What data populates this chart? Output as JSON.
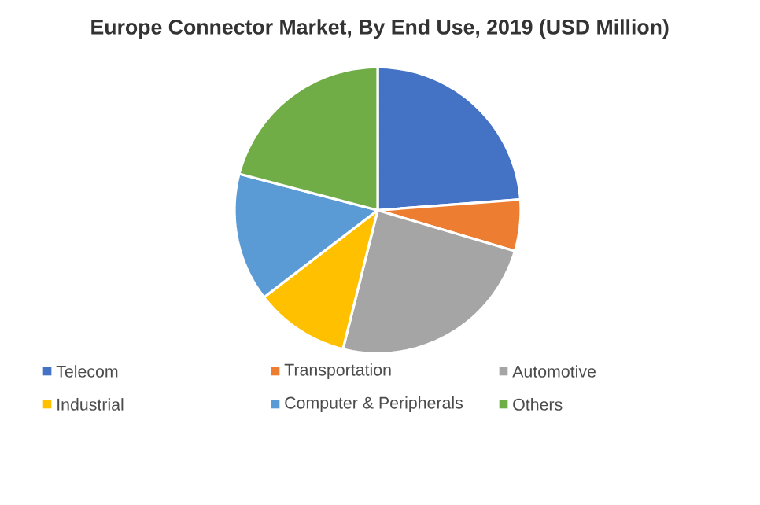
{
  "chart_data": {
    "type": "pie",
    "title": "Europe Connector Market, By End Use, 2019 (USD Million)",
    "categories": [
      "Telecom",
      "Transportation",
      "Automotive",
      "Industrial",
      "Computer & Peripherals",
      "Others"
    ],
    "values": [
      23.8,
      5.8,
      24.3,
      10.7,
      14.5,
      20.9
    ],
    "colors": [
      "#4472c4",
      "#ed7d31",
      "#a5a5a5",
      "#ffc000",
      "#5b9bd5",
      "#70ad47"
    ],
    "legend": "bottom"
  }
}
